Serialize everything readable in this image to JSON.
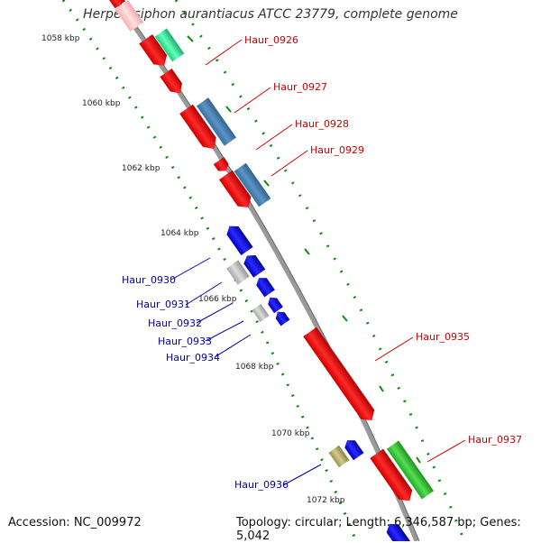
{
  "title": "Herpetosiphon aurantiacus ATCC 23779, complete genome",
  "accession": "Accession: NC_009972",
  "topology": "Topology: circular; Length: 6,346,587 bp; Genes: 5,042",
  "ticks": [
    "1058 kbp",
    "1060 kbp",
    "1062 kbp",
    "1064 kbp",
    "1066 kbp",
    "1068 kbp",
    "1070 kbp",
    "1072 kbp"
  ],
  "genes_forward": [
    "Haur_0926",
    "Haur_0927",
    "Haur_0928",
    "Haur_0929",
    "Haur_0935",
    "Haur_0937"
  ],
  "genes_reverse": [
    "Haur_0930",
    "Haur_0931",
    "Haur_0932",
    "Haur_0933",
    "Haur_0934",
    "Haur_0936"
  ],
  "colors": {
    "forward_label": "#cc0000",
    "reverse_label": "#0000aa",
    "cds_forward": "#ff0000",
    "cds_reverse": "#0000ff",
    "feature_steelblue": "#4682b4",
    "feature_green": "#33cc33",
    "feature_mint": "#33ee99",
    "feature_gray": "#bdbdbd",
    "feature_khaki": "#b8b06a",
    "backbone": "#999999",
    "tick_dots": "#118811"
  }
}
